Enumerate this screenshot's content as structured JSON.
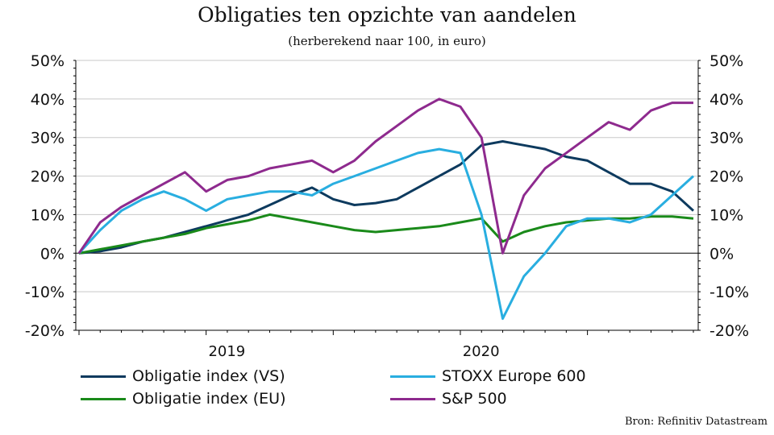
{
  "title": "Obligaties ten opzichte van aandelen",
  "subtitle": "(herberekend naar 100, in euro)",
  "source": "Bron: Refinitiv Datastream",
  "chart_data": {
    "type": "line",
    "x": [
      "2018-07",
      "2018-08",
      "2018-09",
      "2018-10",
      "2018-11",
      "2018-12",
      "2019-01",
      "2019-02",
      "2019-03",
      "2019-04",
      "2019-05",
      "2019-06",
      "2019-07",
      "2019-08",
      "2019-09",
      "2019-10",
      "2019-11",
      "2019-12",
      "2020-01",
      "2020-02",
      "2020-03",
      "2020-04",
      "2020-05",
      "2020-06",
      "2020-07",
      "2020-08",
      "2020-09",
      "2020-10",
      "2020-11",
      "2020-12"
    ],
    "x_tick_labels": [
      "2019",
      "2020"
    ],
    "y_tick_labels": [
      "50%",
      "40%",
      "30%",
      "20%",
      "10%",
      "0%",
      "-10%",
      "-20%"
    ],
    "ylim": [
      -20,
      50
    ],
    "yunit": "%",
    "grid": true,
    "legend_placement": "bottom",
    "series": [
      {
        "name": "Obligatie index (VS)",
        "color": "#0d3a5e",
        "values": [
          0,
          0.5,
          1.5,
          3,
          4,
          5.5,
          7,
          8.5,
          10,
          12.5,
          15,
          17,
          14,
          12.5,
          13,
          14,
          17,
          20,
          23,
          28,
          29,
          28,
          27,
          25,
          24,
          21,
          18,
          18,
          16,
          11
        ]
      },
      {
        "name": "Obligatie index (EU)",
        "color": "#1a8a1a",
        "values": [
          0,
          1,
          2,
          3,
          4,
          5,
          6.5,
          7.5,
          8.5,
          10,
          9,
          8,
          7,
          6,
          5.5,
          6,
          6.5,
          7,
          8,
          9,
          3,
          5.5,
          7,
          8,
          8.5,
          9,
          9,
          9.5,
          9.5,
          9
        ]
      },
      {
        "name": "STOXX Europe 600",
        "color": "#29aee0",
        "values": [
          0,
          6,
          11,
          14,
          16,
          14,
          11,
          14,
          15,
          16,
          16,
          15,
          18,
          20,
          22,
          24,
          26,
          27,
          26,
          10,
          -17,
          -6,
          0,
          7,
          9,
          9,
          8,
          10,
          15,
          20
        ]
      },
      {
        "name": "S&P 500",
        "color": "#8e2a8e",
        "values": [
          0,
          8,
          12,
          15,
          18,
          21,
          16,
          19,
          20,
          22,
          23,
          24,
          21,
          24,
          29,
          33,
          37,
          40,
          38,
          30,
          0,
          15,
          22,
          26,
          30,
          34,
          32,
          37,
          39,
          39
        ]
      }
    ]
  }
}
